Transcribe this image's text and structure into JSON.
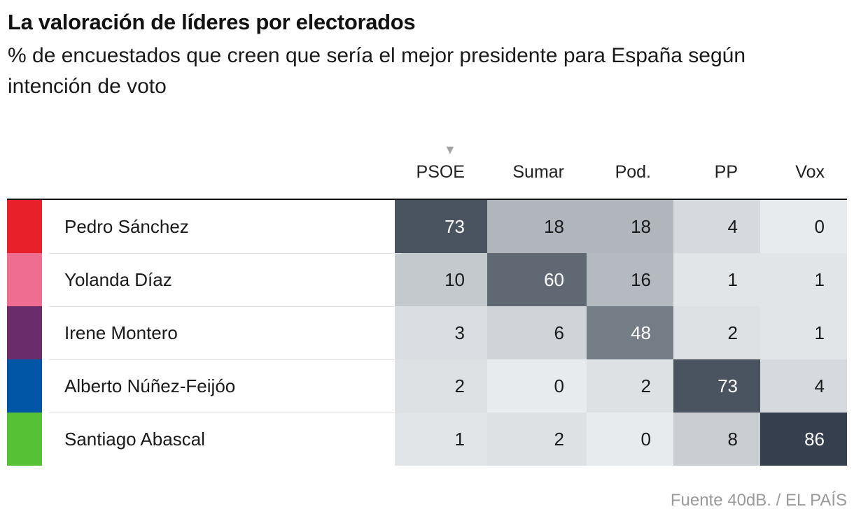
{
  "chart_data": {
    "type": "heatmap",
    "title": "La valoración de líderes por electorados",
    "subtitle": "% de encuestados que creen que sería el mejor presidente para España según intención de voto",
    "sort_indicator": "▼",
    "columns": [
      "PSOE",
      "Sumar",
      "Pod.",
      "PP",
      "Vox"
    ],
    "rows": [
      {
        "name": "Pedro Sánchez",
        "color": "#e8202a",
        "values": [
          73,
          18,
          18,
          4,
          0
        ]
      },
      {
        "name": "Yolanda Díaz",
        "color": "#ef6d91",
        "values": [
          10,
          60,
          16,
          1,
          1
        ]
      },
      {
        "name": "Irene Montero",
        "color": "#6b2c6b",
        "values": [
          3,
          6,
          48,
          2,
          1
        ]
      },
      {
        "name": "Alberto Núñez-Feijóo",
        "color": "#0055a5",
        "values": [
          2,
          0,
          2,
          73,
          4
        ]
      },
      {
        "name": "Santiago Abascal",
        "color": "#57c135",
        "values": [
          1,
          2,
          0,
          8,
          86
        ]
      }
    ],
    "value_range": [
      0,
      86
    ],
    "color_scale": {
      "low": "#e8ebee",
      "high": "#353f4d"
    },
    "source": "Fuente 40dB. / EL PAÍS"
  }
}
